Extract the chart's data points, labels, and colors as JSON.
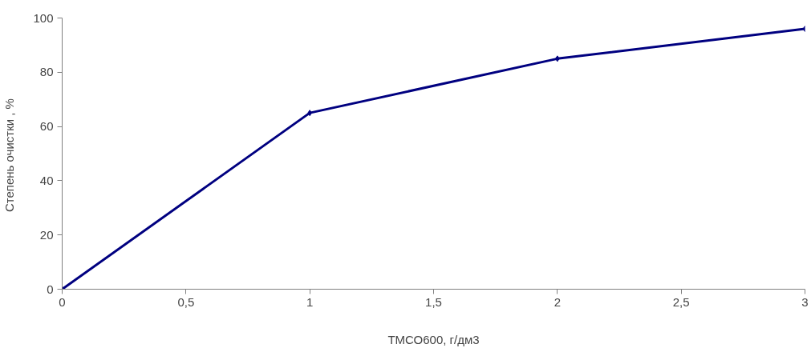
{
  "chart_data": {
    "type": "line",
    "xlabel": "ТМСО600, г/дм3",
    "ylabel": "Степень очистки  , %",
    "x": [
      0,
      1,
      2,
      3
    ],
    "series": [
      {
        "color": "#000080",
        "values": [
          0,
          65,
          85,
          96
        ]
      }
    ],
    "xlim": [
      0,
      3
    ],
    "ylim": [
      0,
      100
    ],
    "xticks": [
      0,
      {
        "value": 0.5,
        "label": "0,5"
      },
      1,
      {
        "value": 1.5,
        "label": "1,5"
      },
      2,
      {
        "value": 2.5,
        "label": "2,5"
      },
      3
    ],
    "yticks": [
      0,
      20,
      40,
      60,
      80,
      100
    ],
    "grid": false,
    "marker": "diamond",
    "line_style": "solid"
  }
}
